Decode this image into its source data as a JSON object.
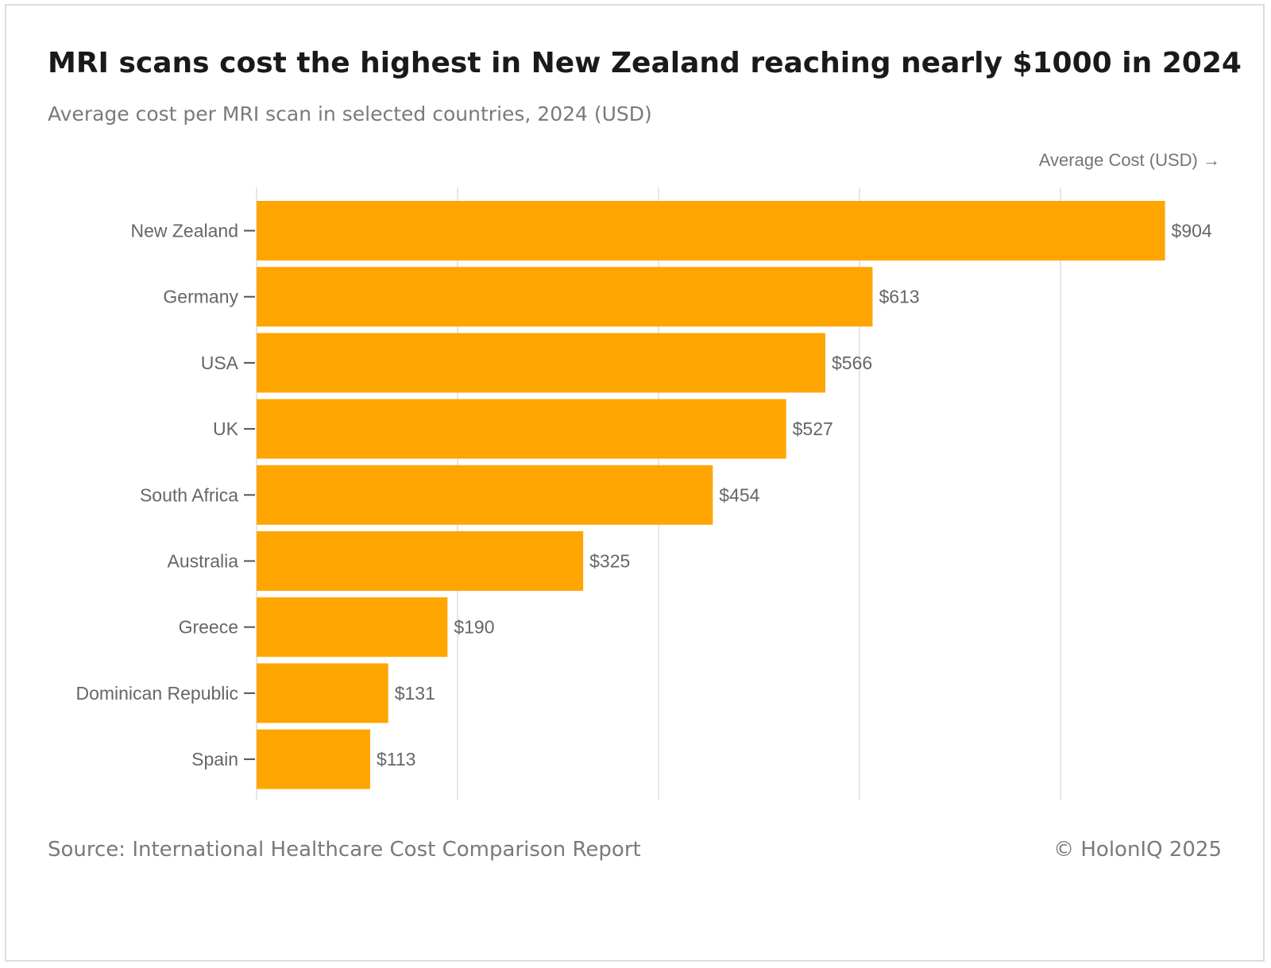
{
  "chart_data": {
    "type": "bar",
    "orientation": "horizontal",
    "title": "MRI scans cost the highest in New Zealand reaching nearly $1000 in 2024",
    "subtitle": "Average cost per MRI scan in selected countries, 2024 (USD)",
    "xlabel": "Average Cost (USD) →",
    "ylabel": "",
    "categories": [
      "New Zealand",
      "Germany",
      "USA",
      "UK",
      "South Africa",
      "Australia",
      "Greece",
      "Dominican Republic",
      "Spain"
    ],
    "values": [
      904,
      613,
      566,
      527,
      454,
      325,
      190,
      131,
      113
    ],
    "value_labels": [
      "$904",
      "$613",
      "$566",
      "$527",
      "$454",
      "$325",
      "$190",
      "$131",
      "$113"
    ],
    "xlim": [
      0,
      1000
    ],
    "grid_values": [
      0,
      200,
      400,
      600,
      800
    ],
    "grid": true,
    "bar_color": "#FFA500",
    "grid_color": "#e6e6e6"
  },
  "footer": {
    "source": "Source: International Healthcare Cost Comparison Report",
    "copyright": "© HolonIQ 2025"
  }
}
